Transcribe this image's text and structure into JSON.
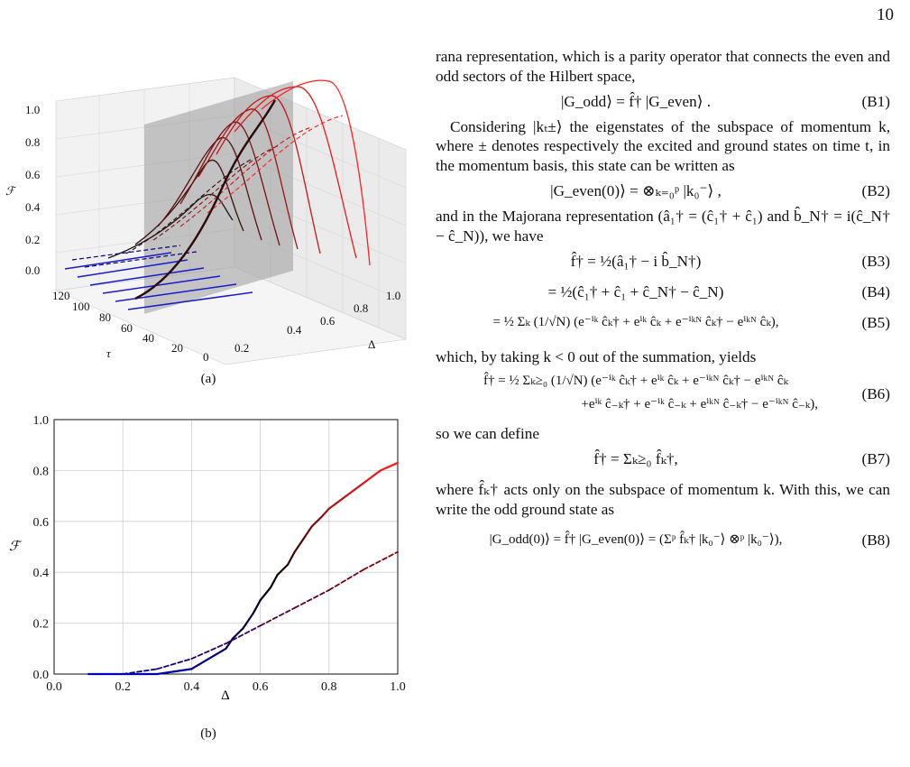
{
  "page_number": "10",
  "figure_a": {
    "caption": "(a)",
    "z_axis_label": "ℱ",
    "z_ticks": [
      "1.0",
      "0.8",
      "0.6",
      "0.4",
      "0.2",
      "0.0"
    ],
    "tau_axis_label": "τ",
    "tau_ticks": [
      "120",
      "100",
      "80",
      "60",
      "40",
      "20",
      "0"
    ],
    "delta_axis_label": "Δ",
    "delta_ticks": [
      "0.2",
      "0.4",
      "0.6",
      "0.8",
      "1.0"
    ]
  },
  "figure_b": {
    "caption": "(b)",
    "xlabel": "Δ",
    "ylabel": "ℱ",
    "x_ticks": [
      "0.0",
      "0.2",
      "0.4",
      "0.6",
      "0.8",
      "1.0"
    ],
    "y_ticks": [
      "0.0",
      "0.2",
      "0.4",
      "0.6",
      "0.8",
      "1.0"
    ]
  },
  "chart_data": {
    "type": "line",
    "xlim": [
      0.0,
      1.0
    ],
    "ylim": [
      0.0,
      1.0
    ],
    "grid": true,
    "series": [
      {
        "style": "solid",
        "x": [
          0.1,
          0.2,
          0.3,
          0.4,
          0.45,
          0.5,
          0.52,
          0.55,
          0.58,
          0.6,
          0.63,
          0.65,
          0.68,
          0.7,
          0.73,
          0.75,
          0.78,
          0.8,
          0.85,
          0.9,
          0.95,
          1.0
        ],
        "y": [
          0.0,
          0.0,
          0.0,
          0.02,
          0.06,
          0.1,
          0.14,
          0.18,
          0.24,
          0.29,
          0.34,
          0.39,
          0.43,
          0.48,
          0.54,
          0.58,
          0.62,
          0.65,
          0.7,
          0.75,
          0.8,
          0.83
        ],
        "color_gradient": [
          "#0000cc",
          "#000000",
          "#ff1a1a"
        ]
      },
      {
        "style": "dashed",
        "x": [
          0.2,
          0.3,
          0.4,
          0.5,
          0.6,
          0.7,
          0.8,
          0.9,
          1.0
        ],
        "y": [
          0.0,
          0.02,
          0.06,
          0.12,
          0.19,
          0.26,
          0.33,
          0.41,
          0.48
        ],
        "color_gradient": [
          "#000099",
          "#8b0000"
        ]
      }
    ]
  },
  "text": {
    "p1": "rana representation, which is a parity operator that connects the even and odd sectors of the Hilbert space,",
    "eqB1": "|G_odd⟩ = f̂† |G_even⟩ .",
    "B1": "(B1)",
    "p2": "Considering |kₜ±⟩ the eigenstates of the subspace of momentum k, where ± denotes respectively the excited and ground states on time t, in the momentum basis, this state can be written as",
    "eqB2": "|G_even(0)⟩ = ⊗ₖ₌₀ᵖ |k₀⁻⟩ ,",
    "B2": "(B2)",
    "p3": "and in the Majorana representation (â₁† = (ĉ₁† + ĉ₁) and b̂_N† = i(ĉ_N† − ĉ_N)), we have",
    "eqB3": "f̂† = ½(â₁† − i b̂_N†)",
    "B3": "(B3)",
    "eqB4": "= ½(ĉ₁† + ĉ₁ + ĉ_N† − ĉ_N)",
    "B4": "(B4)",
    "eqB5": "= ½ Σₖ (1/√N) (e⁻ⁱᵏ ĉₖ† + eⁱᵏ ĉₖ + e⁻ⁱᵏᴺ ĉₖ† − eⁱᵏᴺ ĉₖ),",
    "B5": "(B5)",
    "p4": "which, by taking k < 0 out of the summation, yields",
    "eqB6a": "f̂† = ½ Σₖ≥₀ (1/√N) (e⁻ⁱᵏ ĉₖ† + eⁱᵏ ĉₖ + e⁻ⁱᵏᴺ ĉₖ† − eⁱᵏᴺ ĉₖ",
    "eqB6b": "+eⁱᵏ ĉ₋ₖ† + e⁻ⁱᵏ ĉ₋ₖ + eⁱᵏᴺ ĉ₋ₖ† − e⁻ⁱᵏᴺ ĉ₋ₖ),",
    "B6": "(B6)",
    "p5": "so we can define",
    "eqB7": "f̂† = Σₖ≥₀ f̂ₖ†,",
    "B7": "(B7)",
    "p6": "where f̂ₖ† acts only on the subspace of momentum k. With this, we can write the odd ground state as",
    "eqB8": "|G_odd(0)⟩ = f̂† |G_even(0)⟩ = (Σᵖ f̂ₖ† |k₀⁻⟩ ⊗ᵖ |k₀⁻⟩),",
    "B8": "(B8)"
  }
}
